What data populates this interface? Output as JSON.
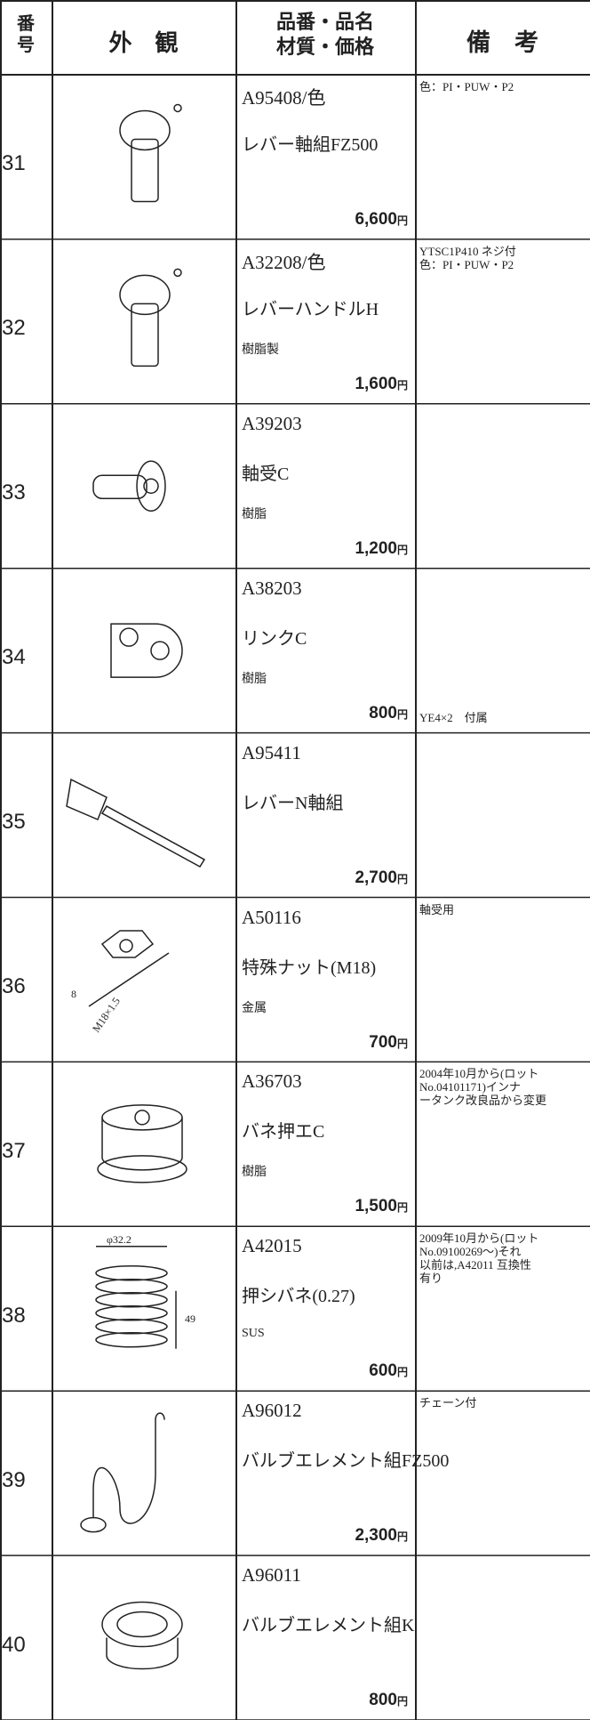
{
  "header": {
    "number": [
      "番",
      "号"
    ],
    "appearance": "外　観",
    "parts": [
      "品番・品名",
      "材質・価格"
    ],
    "notes": "備　考"
  },
  "currency": "円",
  "rows": [
    {
      "number": "31",
      "code": "A95408/色",
      "name": "レバー軸組FZ500",
      "price": "6,600",
      "notes": [
        "色：PI・PUW・P2"
      ]
    },
    {
      "number": "32",
      "code": "A32208/色",
      "name": "レバーハンドルH",
      "material": "樹脂製",
      "price": "1,600",
      "notes": [
        "YTSC1P410 ネジ付",
        "色：PI・PUW・P2"
      ]
    },
    {
      "number": "33",
      "code": "A39203",
      "name": "軸受C",
      "material": "樹脂",
      "price": "1,200"
    },
    {
      "number": "34",
      "code": "A38203",
      "name": "リンクC",
      "material": "樹脂",
      "price": "800",
      "bottom_note": "YE4×2　付属"
    },
    {
      "number": "35",
      "code": "A95411",
      "name": "レバーN軸組",
      "price": "2,700"
    },
    {
      "number": "36",
      "code": "A50116",
      "name": "特殊ナット(M18)",
      "material": "金属",
      "price": "700",
      "notes": [
        "軸受用"
      ],
      "figure_labels": [
        "8",
        "M18×1.5"
      ]
    },
    {
      "number": "37",
      "code": "A36703",
      "name": "バネ押エC",
      "material": "樹脂",
      "price": "1,500",
      "notes": [
        "2004年10月から(ロット",
        "No.04101171)インナ",
        "ータンク改良品から変更"
      ]
    },
    {
      "number": "38",
      "code": "A42015",
      "name": "押シバネ(0.27)",
      "material": "SUS",
      "price": "600",
      "notes": [
        "2009年10月から(ロット",
        "No.09100269〜)それ",
        "以前は,A42011 互換性",
        "有り"
      ],
      "figure_labels": [
        "φ32.2",
        "49"
      ]
    },
    {
      "number": "39",
      "code": "A96012",
      "name": "バルブエレメント組FZ500",
      "price": "2,300",
      "notes": [
        "チェーン付"
      ]
    },
    {
      "number": "40",
      "code": "A96011",
      "name": "バルブエレメント組K",
      "price": "800"
    }
  ]
}
